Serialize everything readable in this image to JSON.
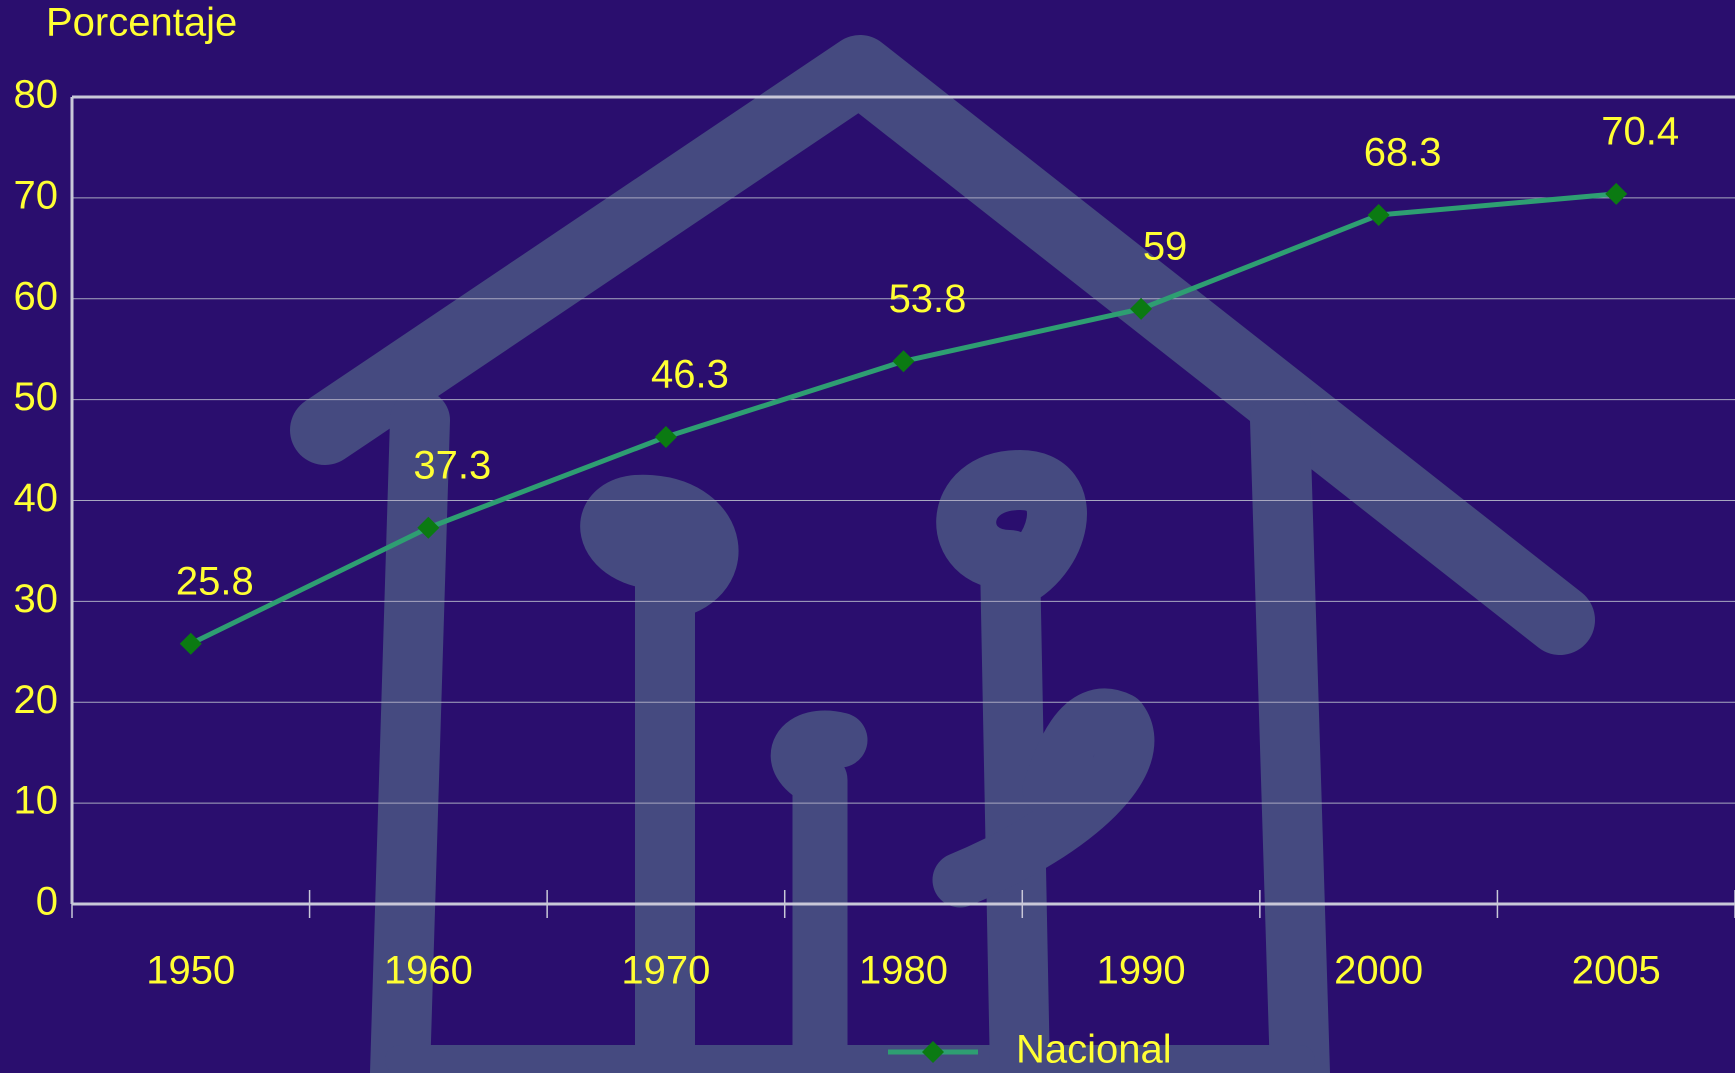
{
  "chart_data": {
    "type": "line",
    "y_axis_label": "Porcentaje",
    "categories": [
      "1950",
      "1960",
      "1970",
      "1980",
      "1990",
      "2000",
      "2005"
    ],
    "series": [
      {
        "name": "Nacional",
        "color": "#2e9e72",
        "marker_color": "#0b7a12",
        "values": [
          25.8,
          37.3,
          46.3,
          53.8,
          59,
          68.3,
          70.4
        ]
      }
    ],
    "ylim": [
      0,
      80
    ],
    "yticks": [
      0,
      10,
      20,
      30,
      40,
      50,
      60,
      70,
      80
    ],
    "grid": true,
    "legend": "bottom"
  }
}
